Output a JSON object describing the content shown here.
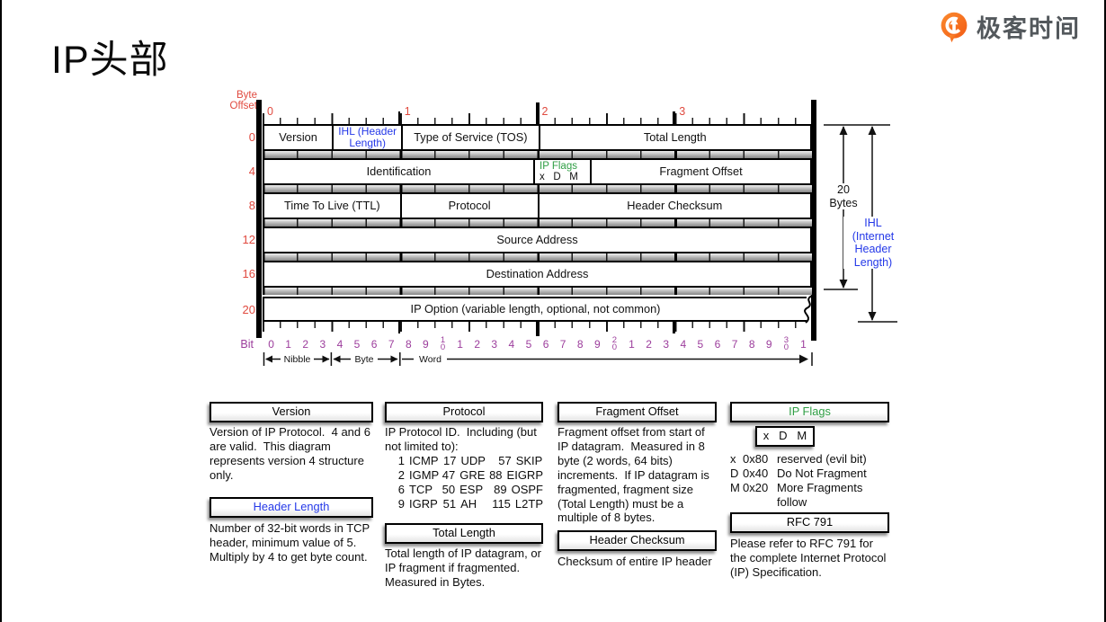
{
  "page": {
    "title": "IP头部"
  },
  "brand": {
    "name": "极客时间",
    "icon": "geektime-q-pin",
    "orange": "#f96a20",
    "text_color": "#53585c"
  },
  "colors": {
    "offset_red": "#e04a3f",
    "ihl_blue": "#2438e8",
    "flags_green": "#2f9e44",
    "bit_purple": "#9c3d9c"
  },
  "diagram": {
    "byte_offset_label": [
      "Byte",
      "Offset"
    ],
    "ruler_numbers": [
      "0",
      "1",
      "2",
      "3"
    ],
    "rows": [
      {
        "offset": "0",
        "cells": [
          {
            "label": "Version",
            "bits": 4
          },
          {
            "lines": [
              "IHL (Header",
              "Length)"
            ],
            "bits": 4,
            "cls": "blue"
          },
          {
            "label": "Type of Service (TOS)",
            "bits": 8
          },
          {
            "label": "Total Length",
            "bits": 16
          }
        ]
      },
      {
        "offset": "4",
        "cells": [
          {
            "label": "Identification",
            "bits": 16
          },
          {
            "lines": [
              "IP Flags",
              "x   D   M"
            ],
            "bits": 3,
            "cls": "ipflags"
          },
          {
            "label": "Fragment Offset",
            "bits": 13
          }
        ]
      },
      {
        "offset": "8",
        "cells": [
          {
            "label": "Time To Live (TTL)",
            "bits": 8
          },
          {
            "label": "Protocol",
            "bits": 8
          },
          {
            "label": "Header Checksum",
            "bits": 16
          }
        ]
      },
      {
        "offset": "12",
        "cells": [
          {
            "label": "Source Address",
            "bits": 32
          }
        ]
      },
      {
        "offset": "16",
        "cells": [
          {
            "label": "Destination Address",
            "bits": 32
          }
        ]
      },
      {
        "offset": "20",
        "cells": [
          {
            "label": "IP Option (variable length, optional, not common)",
            "bits": 32
          }
        ],
        "torn": true
      }
    ],
    "bit_label": "Bit",
    "bit_numbers": [
      "0",
      "1",
      "2",
      "3",
      "4",
      "5",
      "6",
      "7",
      "8",
      "9",
      "10",
      "1",
      "2",
      "3",
      "4",
      "5",
      "6",
      "7",
      "8",
      "9",
      "20",
      "1",
      "2",
      "3",
      "4",
      "5",
      "6",
      "7",
      "8",
      "9",
      "30",
      "1"
    ],
    "scale": {
      "nibble": "Nibble",
      "byte": "Byte",
      "word": "Word"
    },
    "bytes20_label": [
      "20",
      "Bytes"
    ],
    "ihl_note": [
      "IHL",
      "(Internet",
      "Header",
      "Length)"
    ]
  },
  "notes": {
    "version": {
      "title": "Version",
      "body": "Version of IP Protocol.  4 and 6 are valid.  This diagram represents version 4 structure only."
    },
    "header_length": {
      "title": "Header Length",
      "body": "Number of 32-bit words in TCP header, minimum value of 5.  Multiply by 4 to get byte count."
    },
    "protocol": {
      "title": "Protocol",
      "body": "IP Protocol ID.  Including (but not limited to):",
      "table": [
        [
          [
            "1",
            "ICMP"
          ],
          [
            "17",
            "UDP"
          ],
          [
            "57",
            "SKIP"
          ]
        ],
        [
          [
            "2",
            "IGMP"
          ],
          [
            "47",
            "GRE"
          ],
          [
            "88",
            "EIGRP"
          ]
        ],
        [
          [
            "6",
            "TCP"
          ],
          [
            "50",
            "ESP"
          ],
          [
            "89",
            "OSPF"
          ]
        ],
        [
          [
            "9",
            "IGRP"
          ],
          [
            "51",
            "AH"
          ],
          [
            "115",
            "L2TP"
          ]
        ]
      ]
    },
    "total_length": {
      "title": "Total Length",
      "body": "Total length of IP datagram, or IP fragment if fragmented.  Measured in Bytes."
    },
    "fragment_offset": {
      "title": "Fragment Offset",
      "body": "Fragment offset from start of IP datagram.  Measured in 8 byte (2 words, 64 bits) increments.  If IP datagram is fragmented, fragment size (Total Length) must be a multiple of 8 bytes."
    },
    "header_checksum": {
      "title": "Header Checksum",
      "body": "Checksum of entire IP header"
    },
    "ip_flags": {
      "title": "IP Flags",
      "flag_box": "x   D   M",
      "flags": [
        {
          "key": "x",
          "code": "0x80",
          "desc": "reserved (evil bit)"
        },
        {
          "key": "D",
          "code": "0x40",
          "desc": "Do Not Fragment"
        },
        {
          "key": "M",
          "code": "0x20",
          "desc": "More Fragments follow"
        }
      ]
    },
    "rfc": {
      "title": "RFC 791",
      "body": "Please refer to RFC 791 for the complete Internet Protocol (IP) Specification."
    }
  }
}
